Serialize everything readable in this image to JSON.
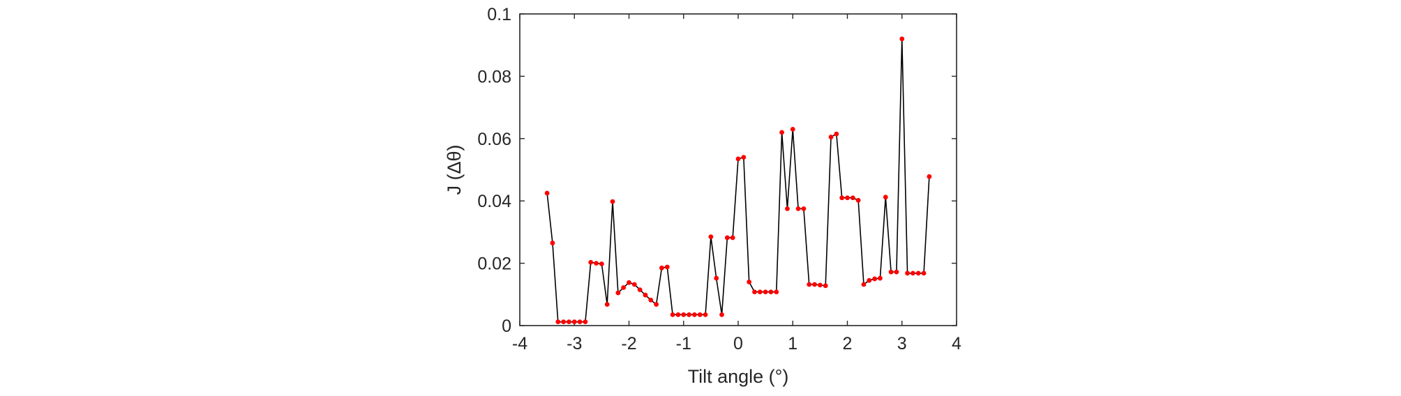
{
  "chart_data": {
    "type": "line",
    "xlabel": "Tilt angle (°)",
    "ylabel": "J (Δθ)",
    "xlim": [
      -4,
      4
    ],
    "ylim": [
      0,
      0.1
    ],
    "xticks": [
      -4,
      -3,
      -2,
      -1,
      0,
      1,
      2,
      3,
      4
    ],
    "xtick_labels": [
      "-4",
      "-3",
      "-2",
      "-1",
      "0",
      "1",
      "2",
      "3",
      "4"
    ],
    "yticks": [
      0,
      0.02,
      0.04,
      0.06,
      0.08,
      0.1
    ],
    "ytick_labels": [
      "0",
      "0.02",
      "0.04",
      "0.06",
      "0.08",
      "0.1"
    ],
    "grid": false,
    "line_color": "#000000",
    "marker_color": "#ff0000",
    "series": [
      {
        "x": [
          -3.5,
          -3.4,
          -3.3,
          -3.2,
          -3.1,
          -3.0,
          -2.9,
          -2.8,
          -2.7,
          -2.6,
          -2.5,
          -2.4,
          -2.3,
          -2.2,
          -2.1,
          -2.0,
          -1.9,
          -1.8,
          -1.7,
          -1.6,
          -1.5,
          -1.4,
          -1.3,
          -1.2,
          -1.1,
          -1.0,
          -0.9,
          -0.8,
          -0.7,
          -0.6,
          -0.5,
          -0.4,
          -0.3,
          -0.2,
          -0.1,
          0.0,
          0.1,
          0.2,
          0.3,
          0.4,
          0.5,
          0.6,
          0.7,
          0.8,
          0.9,
          1.0,
          1.1,
          1.2,
          1.3,
          1.4,
          1.5,
          1.6,
          1.7,
          1.8,
          1.9,
          2.0,
          2.1,
          2.2,
          2.3,
          2.4,
          2.5,
          2.6,
          2.7,
          2.8,
          2.9,
          3.0,
          3.1,
          3.2,
          3.3,
          3.4,
          3.5
        ],
        "values": [
          0.0425,
          0.0265,
          0.0012,
          0.0012,
          0.0012,
          0.0012,
          0.0012,
          0.0012,
          0.0203,
          0.02,
          0.0198,
          0.0068,
          0.0398,
          0.0105,
          0.0122,
          0.0138,
          0.0132,
          0.0115,
          0.0098,
          0.0082,
          0.0068,
          0.0185,
          0.0188,
          0.0035,
          0.0035,
          0.0035,
          0.0035,
          0.0035,
          0.0035,
          0.0035,
          0.0285,
          0.0152,
          0.0035,
          0.0282,
          0.0282,
          0.0535,
          0.054,
          0.014,
          0.0108,
          0.0108,
          0.0108,
          0.0108,
          0.0108,
          0.062,
          0.0375,
          0.063,
          0.0375,
          0.0375,
          0.0132,
          0.0132,
          0.013,
          0.0128,
          0.0605,
          0.0615,
          0.041,
          0.041,
          0.041,
          0.0402,
          0.0132,
          0.0145,
          0.015,
          0.0152,
          0.0412,
          0.0172,
          0.0172,
          0.092,
          0.0168,
          0.0168,
          0.0168,
          0.0168,
          0.0478
        ]
      }
    ]
  }
}
